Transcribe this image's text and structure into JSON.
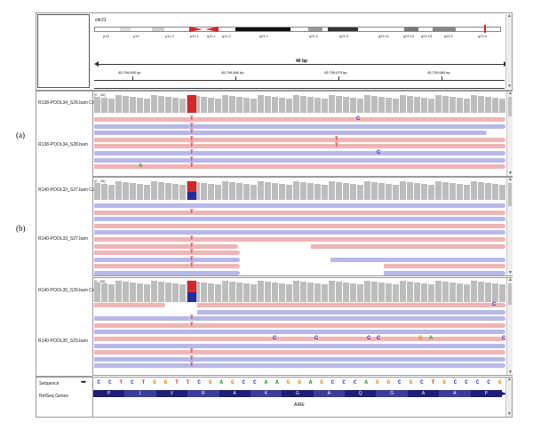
{
  "figure_labels": {
    "a": "(a)",
    "b": "(b)"
  },
  "header": {
    "chromosome": "chr21",
    "bands": [
      "p13",
      "p12",
      "p11.2",
      "p11.1",
      "q11.1",
      "q11.2",
      "q21.1",
      "q21.2",
      "q21.3",
      "q22.11",
      "q22.12",
      "q22.13",
      "q22.2",
      "q22.3"
    ],
    "width_label": "40 bp",
    "positions": [
      "45,709,650 bp",
      "45,709,660 bp",
      "45,709,670 bp",
      "45,709,680 bp"
    ]
  },
  "tracks": [
    {
      "coverage_label": "R138-POOL34_S28.bam Coverag",
      "coverage_range": "[0 - 46]",
      "bam_label": "R138-POOL34_S28.bam"
    },
    {
      "coverage_label": "R140-POOL33_S27.bam Coverag",
      "coverage_range": "[0 - 46]",
      "bam_label": "R140-POOL33_S27.bam"
    },
    {
      "coverage_label": "R140-POOL35_S29.bam Coverag",
      "coverage_range": "[0 - 56]",
      "bam_label": "R140-POOL35_S29.bam"
    }
  ],
  "mismatch": {
    "T": "T",
    "C": "C",
    "A": "A",
    "G": "G"
  },
  "footer": {
    "sequence_label": "Sequence",
    "sequence_arrow": "➡",
    "refseq_label": "RefSeq Genes",
    "sequence": [
      "C",
      "C",
      "T",
      "C",
      "T",
      "G",
      "G",
      "T",
      "T",
      "C",
      "G",
      "A",
      "G",
      "C",
      "C",
      "A",
      "A",
      "G",
      "G",
      "A",
      "G",
      "C",
      "C",
      "C",
      "A",
      "G",
      "G",
      "C",
      "G",
      "C",
      "T",
      "G",
      "C",
      "C",
      "C",
      "C",
      "G"
    ],
    "amino_acids": [
      "P",
      "L",
      "V",
      "R",
      "A",
      "K",
      "G",
      "A",
      "Q",
      "G",
      "A",
      "A",
      "P"
    ],
    "gene": "AIRE"
  },
  "colors": {
    "fwd_read": "#efb5b5",
    "rev_read": "#b8b8e8",
    "coverage": "#bdbdbd",
    "snv_T": "#d62728",
    "snv_C": "#2b2bcc",
    "gene_bar": "#1e1e7a"
  }
}
